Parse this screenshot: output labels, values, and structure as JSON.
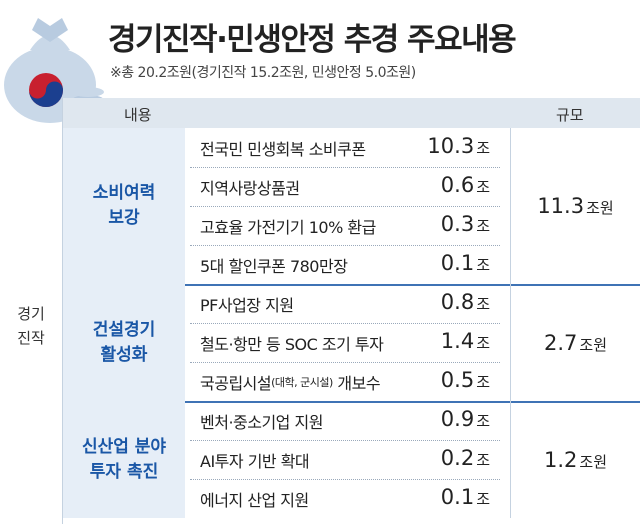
{
  "header": {
    "title": "경기진작·민생안정 추경 주요내용",
    "subtitle": "※총 20.2조원(경기진작 15.2조원, 민생안정 5.0조원)"
  },
  "table": {
    "columns": [
      "내용",
      "규모"
    ],
    "group": [
      "경기",
      "진작"
    ],
    "sections": [
      {
        "name": [
          "소비여력",
          "보강"
        ],
        "total": "11.3",
        "total_unit": "조원",
        "items": [
          {
            "label": "전국민 민생회복 소비쿠폰",
            "amount": "10.3",
            "unit": "조"
          },
          {
            "label": "지역사랑상품권",
            "amount": "0.6",
            "unit": "조"
          },
          {
            "label": "고효율 가전기기 10% 환급",
            "amount": "0.3",
            "unit": "조"
          },
          {
            "label": "5대 할인쿠폰 780만장",
            "amount": "0.1",
            "unit": "조"
          }
        ]
      },
      {
        "name": [
          "건설경기",
          "활성화"
        ],
        "total": "2.7",
        "total_unit": "조원",
        "items": [
          {
            "label": "PF사업장 지원",
            "amount": "0.8",
            "unit": "조"
          },
          {
            "label": "철도·항만 등 SOC 조기 투자",
            "amount": "1.4",
            "unit": "조"
          },
          {
            "label": "국공립시설",
            "label_note": "(대학, 군시설)",
            "label_suffix": " 개보수",
            "amount": "0.5",
            "unit": "조"
          }
        ]
      },
      {
        "name": [
          "신산업 분야",
          "투자 촉진"
        ],
        "total": "1.2",
        "total_unit": "조원",
        "items": [
          {
            "label": "벤처·중소기업 지원",
            "amount": "0.9",
            "unit": "조"
          },
          {
            "label": "AI투자 기반 확대",
            "amount": "0.2",
            "unit": "조"
          },
          {
            "label": "에너지 산업 지원",
            "amount": "0.1",
            "unit": "조"
          }
        ]
      }
    ]
  }
}
